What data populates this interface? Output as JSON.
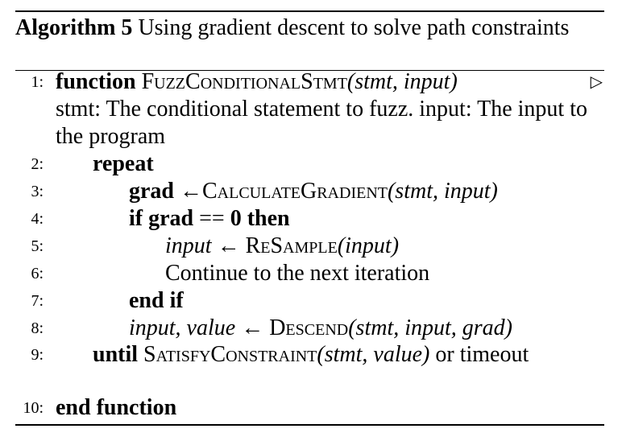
{
  "caption": {
    "label": "Algorithm 5",
    "text": "Using gradient descent to solve path constraints"
  },
  "lines": {
    "l1": {
      "num": "1:",
      "kw": "function",
      "name": "FuzzConditionalStmt",
      "args": "(stmt, input)",
      "comment_marker": "▷",
      "comment": "stmt: The conditional statement to fuzz. input: The input to the program"
    },
    "l2": {
      "num": "2:",
      "kw": "repeat"
    },
    "l3": {
      "num": "3:",
      "lhs": "grad",
      "arrow": "←",
      "fn": "CalculateGradient",
      "args": "(stmt, input)"
    },
    "l4": {
      "num": "4:",
      "kw_if": "if",
      "cond_var": "grad",
      "op": "==",
      "zero": "0",
      "kw_then": "then"
    },
    "l5": {
      "num": "5:",
      "lhs": "input",
      "arrow": "←",
      "fn": "ReSample",
      "args": "(input)"
    },
    "l6": {
      "num": "6:",
      "text": "Continue to the next iteration"
    },
    "l7": {
      "num": "7:",
      "kw": "end if"
    },
    "l8": {
      "num": "8:",
      "lhs": "input, value",
      "arrow": "←",
      "fn": "Descend",
      "args": "(stmt, input, grad)"
    },
    "l9": {
      "num": "9:",
      "kw": "until",
      "fn": "SatisfyConstraint",
      "args": "(stmt, value)",
      "tail": "or timeout"
    },
    "l10": {
      "num": "10:",
      "kw": "end function"
    }
  }
}
